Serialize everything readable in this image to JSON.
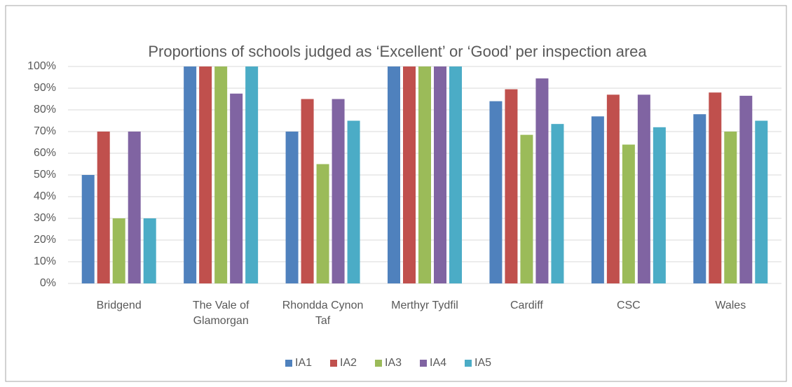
{
  "chart_data": {
    "type": "bar",
    "title": "Proportions of schools judged as ‘Excellent’ or ‘Good’ per inspection area",
    "categories": [
      "Bridgend",
      "The Vale of Glamorgan",
      "Rhondda Cynon Taf",
      "Merthyr Tydfil",
      "Cardiff",
      "CSC",
      "Wales"
    ],
    "series": [
      {
        "name": "IA1",
        "color": "#4f81bd",
        "values": [
          50,
          100,
          70,
          100,
          84,
          77,
          78
        ]
      },
      {
        "name": "IA2",
        "color": "#c0504d",
        "values": [
          70,
          100,
          85,
          100,
          89.5,
          87,
          88
        ]
      },
      {
        "name": "IA3",
        "color": "#9bbb59",
        "values": [
          30,
          100,
          55,
          100,
          68.5,
          64,
          70
        ]
      },
      {
        "name": "IA4",
        "color": "#8064a2",
        "values": [
          70,
          87.5,
          85,
          100,
          94.5,
          87,
          86.5
        ]
      },
      {
        "name": "IA5",
        "color": "#4bacc6",
        "values": [
          30,
          100,
          75,
          100,
          73.5,
          72,
          75
        ]
      }
    ],
    "ylim": [
      0,
      100
    ],
    "yticks": [
      {
        "value": 0,
        "label": "0%"
      },
      {
        "value": 10,
        "label": "10%"
      },
      {
        "value": 20,
        "label": "20%"
      },
      {
        "value": 30,
        "label": "30%"
      },
      {
        "value": 40,
        "label": "40%"
      },
      {
        "value": 50,
        "label": "50%"
      },
      {
        "value": 60,
        "label": "60%"
      },
      {
        "value": 70,
        "label": "70%"
      },
      {
        "value": 80,
        "label": "80%"
      },
      {
        "value": 90,
        "label": "90%"
      },
      {
        "value": 100,
        "label": "100%"
      }
    ],
    "grid": true,
    "legend": "bottom"
  }
}
